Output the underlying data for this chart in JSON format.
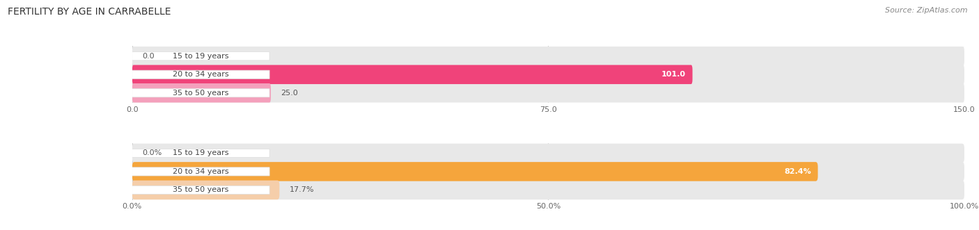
{
  "title": "FERTILITY BY AGE IN CARRABELLE",
  "source": "Source: ZipAtlas.com",
  "top_chart": {
    "categories": [
      "15 to 19 years",
      "20 to 34 years",
      "35 to 50 years"
    ],
    "values": [
      0.0,
      101.0,
      25.0
    ],
    "max_value": 150.0,
    "tick_values": [
      0.0,
      75.0,
      150.0
    ],
    "tick_labels": [
      "0.0",
      "75.0",
      "150.0"
    ],
    "bar_colors": [
      "#f48aaa",
      "#f0437a",
      "#f4a0bc"
    ],
    "bar_bg_color": "#e8e8e8",
    "label_color_inside": "#ffffff",
    "label_color_outside": "#555555"
  },
  "bottom_chart": {
    "categories": [
      "15 to 19 years",
      "20 to 34 years",
      "35 to 50 years"
    ],
    "values": [
      0.0,
      82.4,
      17.7
    ],
    "max_value": 100.0,
    "tick_values": [
      0.0,
      50.0,
      100.0
    ],
    "tick_labels": [
      "0.0%",
      "50.0%",
      "100.0%"
    ],
    "bar_colors": [
      "#f5c897",
      "#f5a53c",
      "#f5ceaa"
    ],
    "bar_bg_color": "#e8e8e8",
    "label_color_inside": "#ffffff",
    "label_color_outside": "#555555"
  },
  "background_color": "#ffffff",
  "title_fontsize": 10,
  "source_fontsize": 8,
  "label_fontsize": 8,
  "tick_fontsize": 8,
  "category_fontsize": 8
}
